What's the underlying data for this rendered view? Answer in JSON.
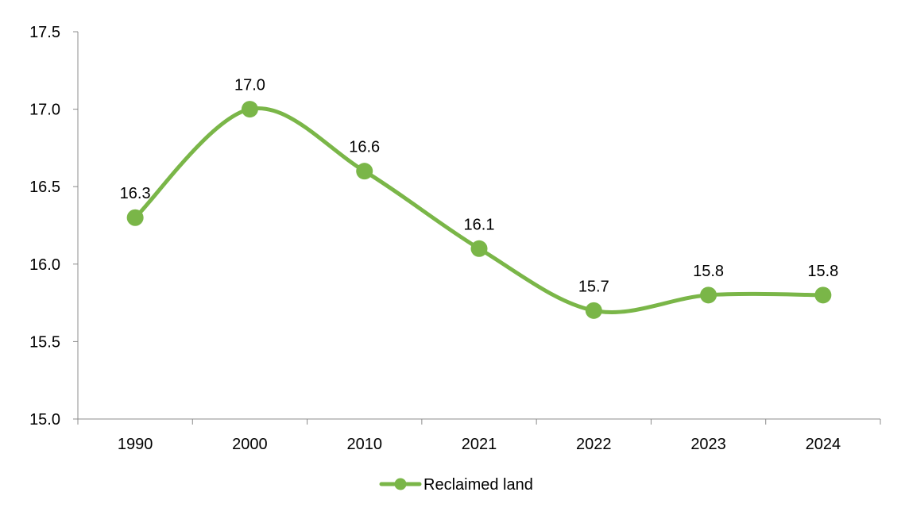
{
  "chart_data": {
    "type": "line",
    "title": "",
    "xlabel": "",
    "ylabel": "",
    "categories": [
      "1990",
      "2000",
      "2010",
      "2021",
      "2022",
      "2023",
      "2024"
    ],
    "series": [
      {
        "name": "Reclaimed land",
        "values": [
          16.3,
          17.0,
          16.6,
          16.1,
          15.7,
          15.8,
          15.8
        ],
        "data_labels": [
          "16.3",
          "17.0",
          "16.6",
          "16.1",
          "15.7",
          "15.8",
          "15.8"
        ],
        "color": "#7ab648",
        "smooth": true,
        "markers": true
      }
    ],
    "ylim": [
      15.0,
      17.5
    ],
    "y_ticks": [
      "15.0",
      "15.5",
      "16.0",
      "16.5",
      "17.0",
      "17.5"
    ],
    "grid": false,
    "legend": "bottom-center"
  }
}
